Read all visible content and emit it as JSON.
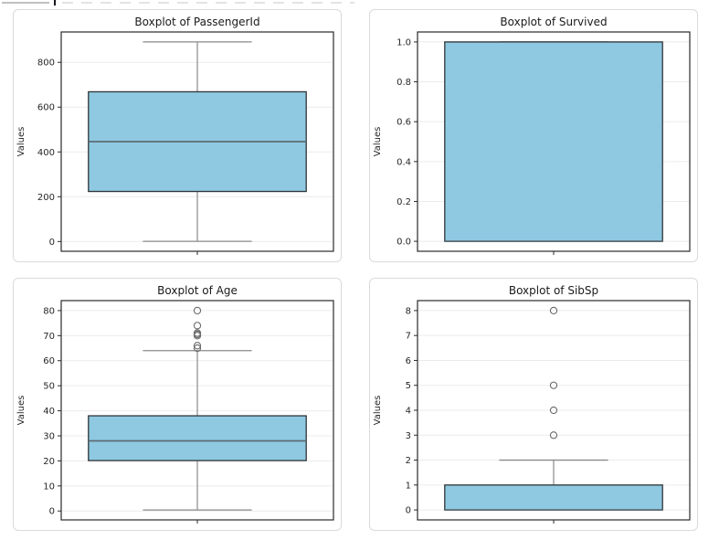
{
  "page": {
    "background": "#ffffff"
  },
  "colors": {
    "box_fill": "#8ec9e1",
    "box_edge": "#2f3439",
    "median": "#5d6a73",
    "whisker": "#8a8a8a",
    "outlier": "#6b6b6b",
    "frame": "#2a2a2a",
    "grid": "#ebebeb",
    "tick_text": "#262626",
    "title_text": "#1a1a1a",
    "card_border": "#dadada"
  },
  "chart_data": [
    {
      "type": "boxplot",
      "title": "Boxplot of PassengerId",
      "ylabel": "Values",
      "tick_labels": [
        "0",
        "200",
        "400",
        "600",
        "800"
      ],
      "tick_values": [
        0,
        200,
        400,
        600,
        800
      ],
      "ylim": [
        -43.5,
        935.5
      ],
      "stats": {
        "whisker_low": 1,
        "q1": 223.5,
        "median": 446,
        "q3": 668.5,
        "whisker_high": 891,
        "outliers": []
      }
    },
    {
      "type": "boxplot",
      "title": "Boxplot of Survived",
      "ylabel": "Values",
      "tick_labels": [
        "0.0",
        "0.2",
        "0.4",
        "0.6",
        "0.8",
        "1.0"
      ],
      "tick_values": [
        0,
        0.2,
        0.4,
        0.6,
        0.8,
        1
      ],
      "ylim": [
        -0.05,
        1.05
      ],
      "stats": {
        "whisker_low": 0,
        "q1": 0,
        "median": 0,
        "q3": 1,
        "whisker_high": 1,
        "outliers": []
      }
    },
    {
      "type": "boxplot",
      "title": "Boxplot of Age",
      "ylabel": "Values",
      "tick_labels": [
        "0",
        "10",
        "20",
        "30",
        "40",
        "50",
        "60",
        "70",
        "80"
      ],
      "tick_values": [
        0,
        10,
        20,
        30,
        40,
        50,
        60,
        70,
        80
      ],
      "ylim": [
        -3.56,
        83.98
      ],
      "stats": {
        "whisker_low": 0.42,
        "q1": 20.125,
        "median": 28,
        "q3": 38,
        "whisker_high": 64,
        "outliers": [
          65,
          66,
          70,
          70.5,
          71,
          74,
          80
        ]
      }
    },
    {
      "type": "boxplot",
      "title": "Boxplot of SibSp",
      "ylabel": "Values",
      "tick_labels": [
        "0",
        "1",
        "2",
        "3",
        "4",
        "5",
        "6",
        "7",
        "8"
      ],
      "tick_values": [
        0,
        1,
        2,
        3,
        4,
        5,
        6,
        7,
        8
      ],
      "ylim": [
        -0.4,
        8.4
      ],
      "stats": {
        "whisker_low": 0,
        "q1": 0,
        "median": 0,
        "q3": 1,
        "whisker_high": 2,
        "outliers": [
          3,
          4,
          5,
          8
        ]
      }
    }
  ]
}
